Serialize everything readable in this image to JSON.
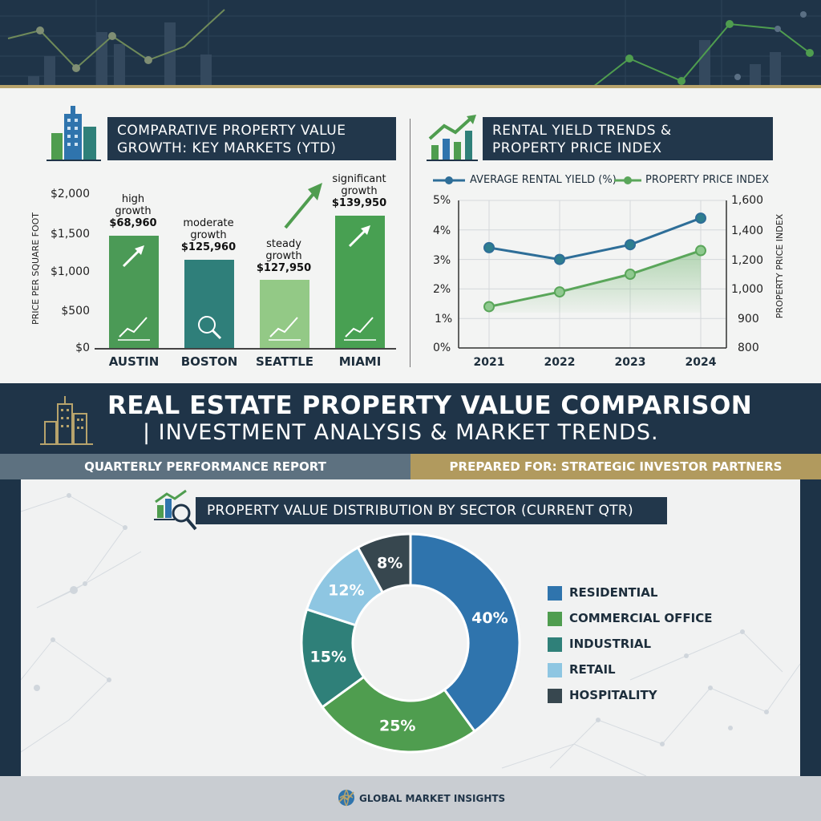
{
  "left_chart": {
    "title_line1": "COMPARATIVE PROPERTY VALUE",
    "title_line2": "GROWTH: KEY MARKETS (YTD)",
    "ylabel": "PRICE PER SQUARE FOOT",
    "yticks": [
      "$2,000",
      "$1,500",
      "$1,000",
      "$500",
      "$0"
    ],
    "annotations": [
      {
        "line1": "high",
        "line2": "growth",
        "value": "$68,960"
      },
      {
        "line1": "moderate",
        "line2": "growth",
        "value": "$125,960"
      },
      {
        "line1": "steady",
        "line2": "growth",
        "value": "$127,950"
      },
      {
        "line1": "significant",
        "line2": "growth",
        "value": "$139,950"
      }
    ]
  },
  "right_chart": {
    "title_line1": "RENTAL YIELD TRENDS &",
    "title_line2": "PROPERTY PRICE INDEX",
    "legend_yield": "AVERAGE RENTAL YIELD (%)",
    "legend_index": "PROPERTY PRICE INDEX",
    "yticks_left": [
      "5%",
      "4%",
      "3%",
      "2%",
      "1%",
      "0%"
    ],
    "yticks_right": [
      "1,600",
      "1,400",
      "1,200",
      "1,000",
      "900",
      "800"
    ],
    "ylabel_right": "PROPERTY PRICE INDEX"
  },
  "header": {
    "title": "REAL ESTATE PROPERTY VALUE COMPARISON",
    "subtitle": "| INVESTMENT ANALYSIS & MARKET TRENDS.",
    "report_label": "QUARTERLY PERFORMANCE REPORT",
    "prepared_label": "PREPARED FOR: STRATEGIC INVESTOR PARTNERS"
  },
  "donut_chart": {
    "title": "PROPERTY VALUE DISTRIBUTION BY SECTOR (CURRENT QTR)"
  },
  "footer": {
    "brand": "GLOBAL MARKET INSIGHTS"
  },
  "colors": {
    "navy": "#1f3448",
    "gold": "#b7a36c",
    "blue": "#2f74ad",
    "green": "#4f9d4f",
    "teal": "#2f8079",
    "lightblue": "#8ec6e2",
    "darkslate": "#37474f"
  },
  "chart_data": [
    {
      "type": "bar",
      "title": "COMPARATIVE PROPERTY VALUE GROWTH: KEY MARKETS (YTD)",
      "xlabel": "",
      "ylabel": "PRICE PER SQUARE FOOT",
      "categories": [
        "AUSTIN",
        "BOSTON",
        "SEATTLE",
        "MIAMI"
      ],
      "values": [
        1470,
        1150,
        890,
        1730
      ],
      "ylim": [
        0,
        2000
      ],
      "colors": [
        "#4b9a56",
        "#2f7f7a",
        "#93c986",
        "#48a052"
      ],
      "grid": false
    },
    {
      "type": "line",
      "title": "RENTAL YIELD TRENDS & PROPERTY PRICE INDEX",
      "x": [
        "2021",
        "2022",
        "2023",
        "2024"
      ],
      "series": [
        {
          "name": "AVERAGE RENTAL YIELD (%)",
          "values": [
            3.4,
            3.0,
            3.5,
            4.4
          ],
          "axis": "left",
          "color": "#2e6e98"
        },
        {
          "name": "PROPERTY PRICE INDEX",
          "values": [
            940,
            990,
            1100,
            1260
          ],
          "axis": "right",
          "color": "#5aa65a"
        }
      ],
      "ylim_left": [
        0,
        5
      ],
      "right_ticks": [
        800,
        900,
        1000,
        1200,
        1400,
        1600
      ],
      "ylabel_right": "PROPERTY PRICE INDEX",
      "legend": "top",
      "grid": true
    },
    {
      "type": "pie",
      "title": "PROPERTY VALUE DISTRIBUTION BY SECTOR (CURRENT QTR)",
      "labels": [
        "RESIDENTIAL",
        "COMMERCIAL OFFICE",
        "INDUSTRIAL",
        "RETAIL",
        "HOSPITALITY"
      ],
      "values": [
        40,
        25,
        15,
        12,
        8
      ],
      "value_labels": [
        "40%",
        "25%",
        "15%",
        "12%",
        "8%"
      ],
      "colors": [
        "#2f74ad",
        "#4f9d4f",
        "#2f8079",
        "#8ec6e2",
        "#37474f"
      ],
      "donut": true,
      "legend": "right"
    }
  ]
}
